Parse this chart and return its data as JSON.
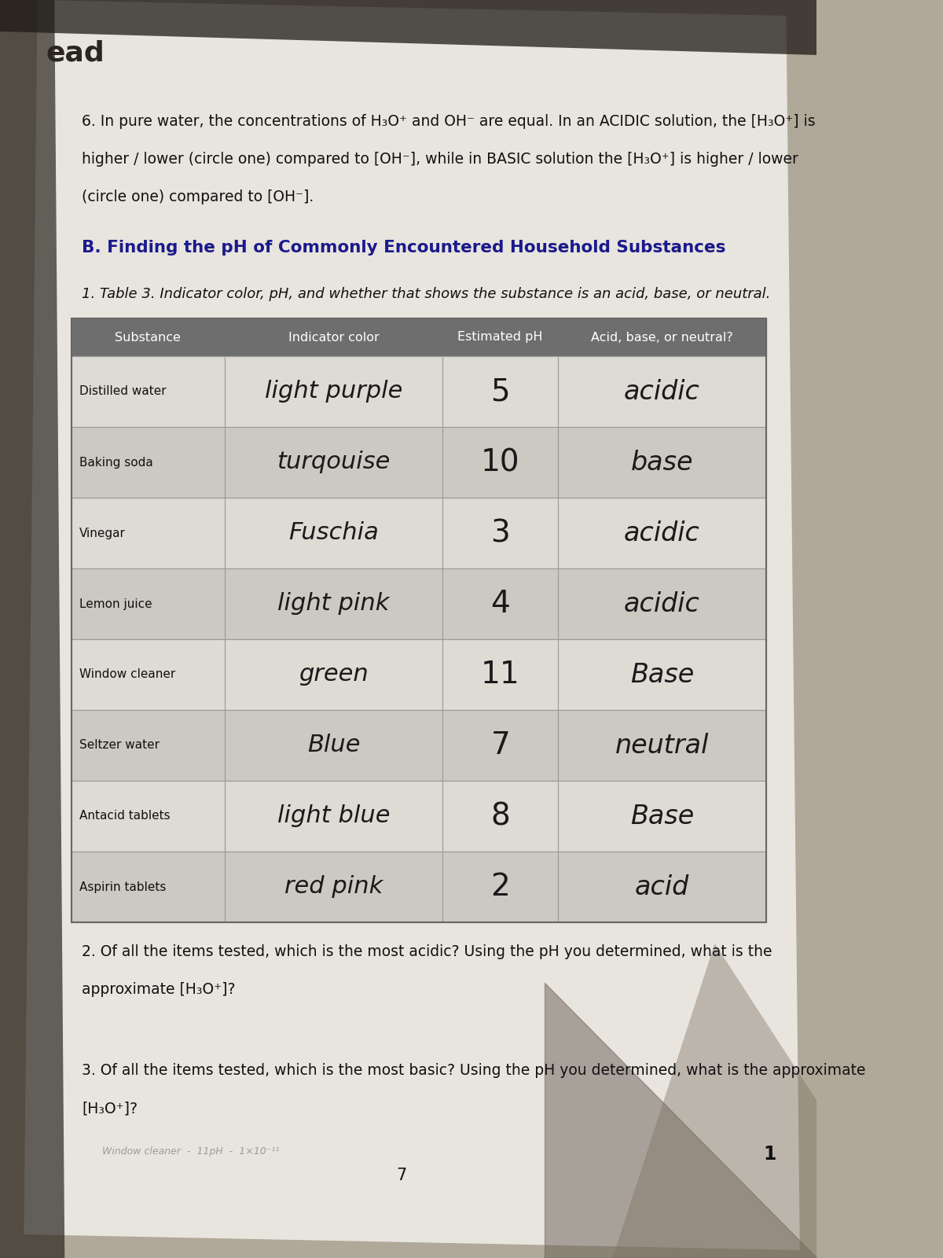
{
  "bg_outer": "#b0a898",
  "bg_paper": "#dedad4",
  "bg_paper2": "#e8e4de",
  "tab_header_color": "#6e6e6e",
  "tab_row_even": "#dedad4",
  "tab_row_odd": "#ccc8c2",
  "corner_label": "ead",
  "q6_line1": "6. In pure water, the concentrations of H₃O⁺ and OH⁻ are equal. In an ACIDIC solution, the [H₃O⁺] is",
  "q6_line2": "higher / lower (circle one) compared to [OH⁻], while in BASIC solution the [H₃O⁺] is higher / lower",
  "q6_line3": "(circle one) compared to [OH⁻].",
  "section_B": "B. Finding the pH of Commonly Encountered Household Substances",
  "table_caption": "1. Table 3. Indicator color, pH, and whether that shows the substance is an acid, base, or neutral.",
  "col_headers": [
    "Substance",
    "Indicator color",
    "Estimated pH",
    "Acid, base, or neutral?"
  ],
  "table_data": [
    [
      "Distilled water",
      "light purple",
      "5",
      "acidic"
    ],
    [
      "Baking soda",
      "turqouise",
      "10",
      "base"
    ],
    [
      "Vinegar",
      "Fuschia",
      "3",
      "acidic"
    ],
    [
      "Lemon juice",
      "light pink",
      "4",
      "acidic"
    ],
    [
      "Window cleaner",
      "green",
      "11",
      "Base"
    ],
    [
      "Seltzer water",
      "Blue",
      "7",
      "neutral"
    ],
    [
      "Antacid tablets",
      "light blue",
      "8",
      "Base"
    ],
    [
      "Aspirin tablets",
      "red pink",
      "2",
      "acid"
    ]
  ],
  "q2_line1": "2. Of all the items tested, which is the most acidic? Using the pH you determined, what is the",
  "q2_line2": "approximate [H₃O⁺]?",
  "q3_line1": "3. Of all the items tested, which is the most basic? Using the pH you determined, what is the approximate",
  "q3_line2": "[H₃O⁺]?",
  "page_num": "7",
  "page_num2": "1"
}
